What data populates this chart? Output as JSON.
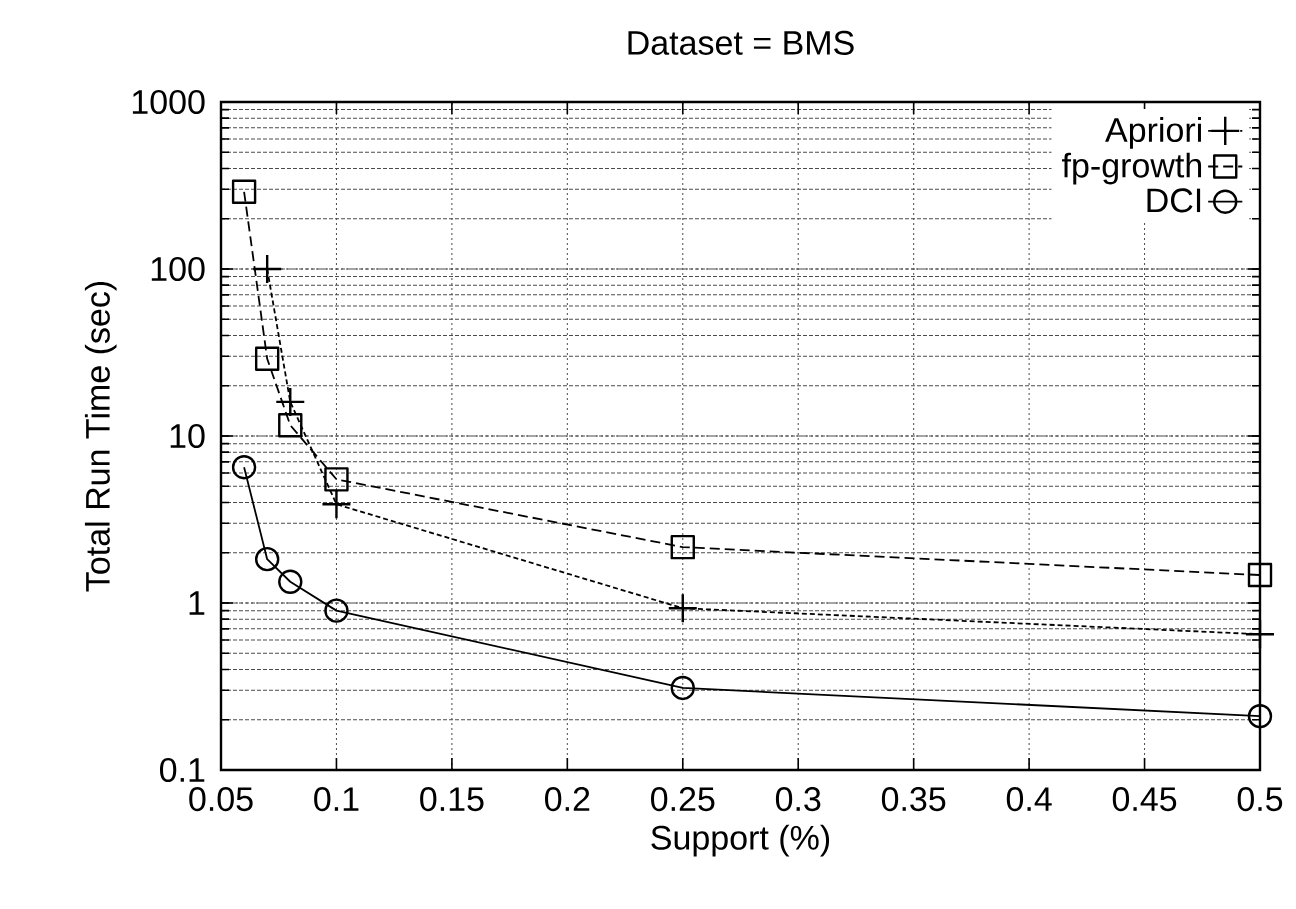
{
  "chart_data": {
    "type": "line",
    "title": "Dataset = BMS",
    "xlabel": "Support (%)",
    "ylabel": "Total Run Time (sec)",
    "series": [
      {
        "name": "Apriori",
        "color": "#000000",
        "marker": "cross",
        "line_style": "dotted",
        "x": [
          0.07,
          0.08,
          0.1,
          0.25,
          0.5
        ],
        "values": [
          100,
          16,
          3.9,
          0.93,
          0.65
        ]
      },
      {
        "name": "fp-growth",
        "color": "#000000",
        "marker": "square",
        "line_style": "dashed",
        "x": [
          0.06,
          0.07,
          0.08,
          0.1,
          0.25,
          0.5
        ],
        "values": [
          290,
          29,
          11.6,
          5.5,
          2.16,
          1.47
        ]
      },
      {
        "name": "DCI",
        "color": "#000000",
        "marker": "circle",
        "line_style": "solid",
        "x": [
          0.06,
          0.07,
          0.08,
          0.1,
          0.25,
          0.5
        ],
        "values": [
          6.5,
          1.83,
          1.34,
          0.9,
          0.31,
          0.21
        ]
      }
    ],
    "log": "y",
    "xlim": [
      0.05,
      0.5
    ],
    "ylim": [
      0.1,
      1000
    ],
    "xticks": [
      0.05,
      0.1,
      0.15,
      0.2,
      0.25,
      0.3,
      0.35,
      0.4,
      0.45,
      0.5
    ],
    "yticks": [
      0.1,
      1,
      10,
      100,
      1000
    ],
    "grid": true,
    "legend": "top right"
  }
}
